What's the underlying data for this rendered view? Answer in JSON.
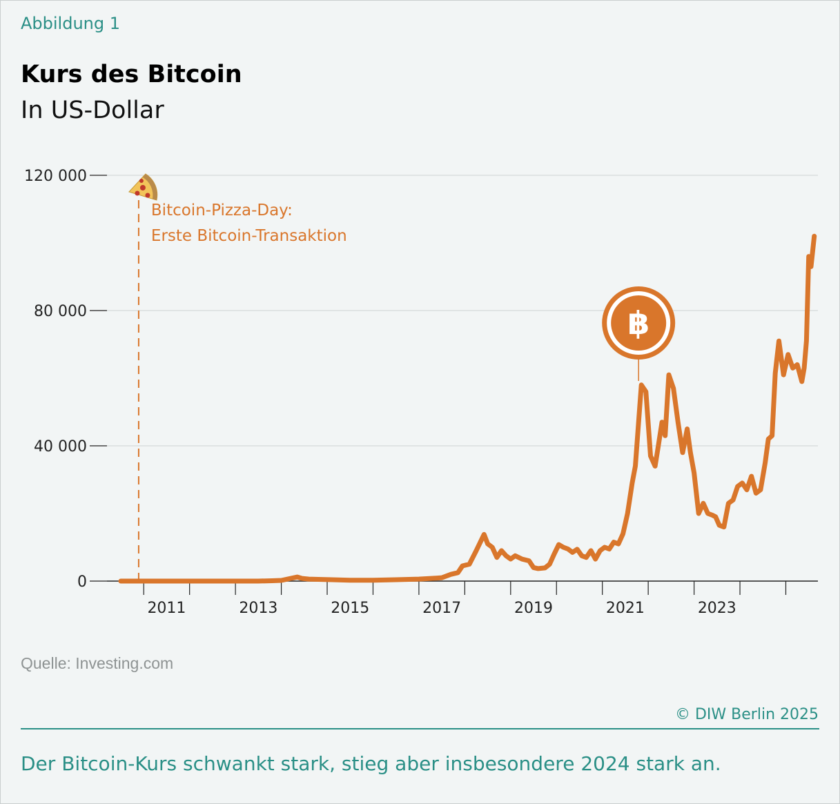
{
  "header": {
    "figure_label": "Abbildung 1",
    "title": "Kurs des Bitcoin",
    "subtitle": "In US-Dollar"
  },
  "footer": {
    "source": "Quelle: Investing.com",
    "copyright": "© DIW Berlin 2025",
    "caption": "Der Bitcoin-Kurs schwankt stark, stieg aber insbesondere 2024 stark an."
  },
  "colors": {
    "line": "#d9762b",
    "accent": "#2a8f86",
    "grid": "#cfd4d4",
    "axis": "#222222"
  },
  "annotations": {
    "pizza_line1": "Bitcoin-Pizza-Day:",
    "pizza_line2": "Erste Bitcoin-Transaktion",
    "pizza_icon": "pizza-slice-icon",
    "bitcoin_icon": "bitcoin-logo-icon",
    "pizza_date": 2010.39,
    "bitcoin_date": 2021.29
  },
  "chart_data": {
    "type": "line",
    "title": "Kurs des Bitcoin",
    "ylabel": "In US-Dollar",
    "xlabel": "",
    "ylim": [
      0,
      120000
    ],
    "xlim": [
      2010.0,
      2025.0
    ],
    "yticks": [
      0,
      40000,
      80000,
      120000
    ],
    "ytick_labels": [
      "0",
      "40 000",
      "80 000",
      "120 000"
    ],
    "xtick_labels": [
      "2011",
      "2013",
      "2015",
      "2017",
      "2019",
      "2021",
      "2023"
    ],
    "xtick_positions": [
      2011.0,
      2013.0,
      2015.0,
      2017.0,
      2019.0,
      2021.0,
      2023.0
    ],
    "grid": true,
    "series": [
      {
        "x": [
          2010.0,
          2010.5,
          2011.0,
          2011.5,
          2012.0,
          2012.5,
          2013.0,
          2013.3,
          2013.5,
          2013.85,
          2013.95,
          2014.1,
          2014.3,
          2014.6,
          2015.0,
          2015.5,
          2016.0,
          2016.5,
          2016.9,
          2017.0,
          2017.2,
          2017.35,
          2017.45,
          2017.6,
          2017.75,
          2017.92,
          2018.0,
          2018.1,
          2018.2,
          2018.3,
          2018.4,
          2018.5,
          2018.6,
          2018.75,
          2018.9,
          2019.0,
          2019.1,
          2019.25,
          2019.35,
          2019.45,
          2019.55,
          2019.65,
          2019.75,
          2019.85,
          2019.95,
          2020.05,
          2020.15,
          2020.25,
          2020.35,
          2020.45,
          2020.55,
          2020.65,
          2020.75,
          2020.85,
          2020.95,
          2021.05,
          2021.15,
          2021.22,
          2021.29,
          2021.35,
          2021.45,
          2021.55,
          2021.65,
          2021.72,
          2021.8,
          2021.87,
          2021.95,
          2022.05,
          2022.15,
          2022.25,
          2022.35,
          2022.42,
          2022.5,
          2022.6,
          2022.7,
          2022.8,
          2022.9,
          2022.97,
          2023.05,
          2023.15,
          2023.25,
          2023.35,
          2023.45,
          2023.55,
          2023.65,
          2023.75,
          2023.85,
          2023.95,
          2024.05,
          2024.12,
          2024.2,
          2024.27,
          2024.35,
          2024.45,
          2024.55,
          2024.65,
          2024.75,
          2024.85,
          2024.9,
          2024.95,
          2025.0,
          2025.05,
          2025.12
        ],
        "values": [
          0,
          0,
          0,
          0,
          0,
          0,
          0,
          100,
          200,
          1200,
          800,
          600,
          500,
          400,
          250,
          250,
          400,
          600,
          900,
          1000,
          2000,
          2500,
          4500,
          5000,
          9000,
          13800,
          11000,
          10000,
          7000,
          9000,
          7500,
          6500,
          7500,
          6500,
          6000,
          4000,
          3700,
          3900,
          5000,
          8000,
          10800,
          10000,
          9500,
          8500,
          9400,
          7500,
          7000,
          9000,
          6500,
          9000,
          10000,
          9500,
          11500,
          11000,
          14000,
          20000,
          29000,
          34000,
          47000,
          58000,
          56000,
          37000,
          34000,
          40000,
          47000,
          43000,
          61000,
          57000,
          47000,
          38000,
          45000,
          38000,
          32000,
          20000,
          23000,
          20000,
          19500,
          19000,
          16500,
          16000,
          23000,
          24000,
          28000,
          29000,
          27000,
          31000,
          26000,
          27000,
          35000,
          42000,
          43000,
          61500,
          71000,
          61000,
          67000,
          63000,
          64000,
          59000,
          63000,
          71000,
          96000,
          93000,
          102000
        ]
      }
    ]
  }
}
